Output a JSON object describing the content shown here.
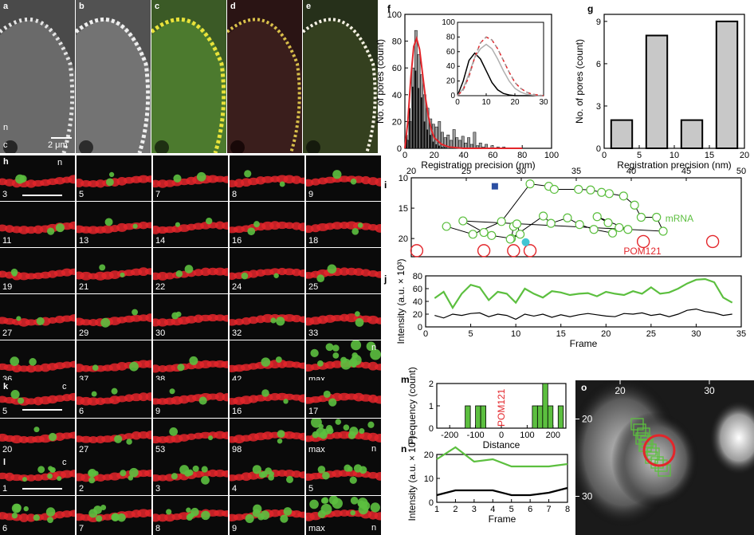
{
  "colors": {
    "red": "#e3262b",
    "green": "#5cbf3f",
    "blue": "#2b4fa2",
    "cyan": "#41c5d3",
    "gray": "#9b9b9b",
    "bar": "#c8c8c8"
  },
  "top_panels": {
    "labels": [
      "a",
      "b",
      "c",
      "d",
      "e"
    ],
    "n_label": "n",
    "c_label": "c",
    "scale_label": "2 μm"
  },
  "h": {
    "label": "h",
    "rows": [
      [
        "3",
        "5",
        "7",
        "8",
        "9"
      ],
      [
        "11",
        "13",
        "14",
        "16",
        "18"
      ],
      [
        "19",
        "21",
        "22",
        "24",
        "25"
      ],
      [
        "27",
        "29",
        "30",
        "32",
        "33"
      ],
      [
        "36",
        "37",
        "38",
        "42",
        "max"
      ]
    ],
    "n_label_top": "n",
    "n_label_max": "n"
  },
  "k": {
    "label": "k",
    "rows": [
      [
        "5",
        "6",
        "9",
        "16",
        "17"
      ],
      [
        "20",
        "27",
        "53",
        "98",
        "max"
      ]
    ],
    "c_label": "c",
    "n_label": "n"
  },
  "l": {
    "label": "l",
    "rows": [
      [
        "1",
        "2",
        "3",
        "4",
        "5"
      ],
      [
        "6",
        "7",
        "8",
        "9",
        "max"
      ]
    ],
    "c_label": "c",
    "n_label": "n"
  },
  "chart_data": [
    {
      "id": "f",
      "type": "bar",
      "xlabel": "Registration precision (nm)",
      "ylabel": "No. of pores (count)",
      "xlim": [
        0,
        100
      ],
      "ylim": [
        0,
        100
      ],
      "xticks": [
        0,
        20,
        40,
        60,
        80,
        100
      ],
      "yticks": [
        0,
        20,
        40,
        60,
        80,
        100
      ],
      "x": [
        1.5,
        3.5,
        5.5,
        7.5,
        9.5,
        11.5,
        13.5,
        15.5,
        17.5,
        19.5,
        21.5,
        23.5,
        25.5,
        27.5,
        29.5,
        31.5,
        33.5,
        35.5,
        37.5,
        39.5,
        41.5,
        43.5,
        45.5,
        47.5,
        49.5,
        51.5,
        53.5,
        55.5,
        57.5,
        59.5,
        61.5,
        63.5,
        65.5,
        67.5,
        69.5
      ],
      "series": [
        {
          "values": [
            10,
            30,
            46,
            58,
            45,
            38,
            20,
            14,
            10,
            5,
            3,
            2,
            1,
            1,
            0,
            0,
            0,
            0,
            0,
            0,
            0,
            0,
            0,
            0,
            0,
            0,
            0,
            0,
            0,
            0,
            0,
            0,
            0,
            0,
            0
          ]
        },
        {
          "values": [
            6,
            20,
            60,
            88,
            70,
            55,
            40,
            30,
            22,
            18,
            16,
            20,
            12,
            8,
            10,
            6,
            14,
            8,
            6,
            9,
            4,
            8,
            3,
            12,
            2,
            4,
            1,
            3,
            0,
            2,
            0,
            1,
            0,
            1,
            0
          ]
        }
      ],
      "curve": {
        "x": [
          0,
          2,
          4,
          6,
          8,
          10,
          12,
          14,
          16,
          18,
          20,
          25,
          30,
          40,
          60,
          80
        ],
        "y": [
          0,
          20,
          52,
          76,
          82,
          74,
          56,
          38,
          24,
          14,
          8,
          3,
          1,
          0,
          0,
          0
        ]
      },
      "inset": {
        "xlim": [
          0,
          30
        ],
        "ylim": [
          0,
          100
        ],
        "xticks": [
          0,
          10,
          20,
          30
        ],
        "yticks": [
          0,
          20,
          40,
          60,
          80,
          100
        ],
        "x": [
          0,
          2,
          4,
          6,
          8,
          10,
          12,
          14,
          16,
          18,
          20,
          22,
          24,
          26,
          28,
          30
        ],
        "series": [
          {
            "values": [
              0,
              20,
              48,
              58,
              50,
              34,
              18,
              8,
              3,
              1,
              0,
              0,
              0,
              0,
              0,
              0
            ]
          },
          {
            "values": [
              0,
              10,
              30,
              52,
              64,
              70,
              64,
              50,
              34,
              20,
              10,
              5,
              2,
              1,
              0,
              0
            ]
          },
          {
            "values": [
              0,
              8,
              26,
              52,
              72,
              80,
              76,
              64,
              48,
              32,
              18,
              10,
              5,
              2,
              1,
              0
            ]
          }
        ]
      }
    },
    {
      "id": "g",
      "type": "bar",
      "xlabel": "Registration precision (nm)",
      "ylabel": "No. of pores (count)",
      "xlim": [
        0,
        20
      ],
      "ylim": [
        0,
        9.5
      ],
      "xticks": [
        0,
        5,
        10,
        15,
        20
      ],
      "yticks": [
        0,
        3,
        6,
        9
      ],
      "bins": [
        [
          1,
          4
        ],
        [
          6,
          9
        ],
        [
          11,
          14
        ],
        [
          16,
          19
        ]
      ],
      "values": [
        2,
        8,
        2,
        9
      ]
    },
    {
      "id": "i",
      "type": "scatter",
      "xlim": [
        20,
        50
      ],
      "ylim": [
        10,
        23
      ],
      "xticks": [
        20,
        25,
        30,
        35,
        40,
        45,
        50
      ],
      "yticks": [
        10,
        15,
        20
      ],
      "mrna": {
        "name": "mRNA",
        "x": [
          23.2,
          25.6,
          28.2,
          30.8,
          32.5,
          33.0,
          35.2,
          36.3,
          37.3,
          38.0,
          39.3,
          40.3,
          40.9,
          42.3,
          42.9,
          24.7,
          26.6,
          27.3,
          29.1,
          29.3,
          29.6,
          29.9,
          29.0,
          32.0,
          32.7,
          34.2,
          35.3,
          36.6,
          38.3,
          38.9,
          39.7,
          36.9,
          37.9
        ],
        "y": [
          18.0,
          19.3,
          17.2,
          11.0,
          11.4,
          11.9,
          11.9,
          12.0,
          12.4,
          12.6,
          13.0,
          14.5,
          16.5,
          16.5,
          18.8,
          17.1,
          19.0,
          19.5,
          20.0,
          18.0,
          17.6,
          19.3,
          20.1,
          16.3,
          17.5,
          16.6,
          17.7,
          18.5,
          19.1,
          18.2,
          18.5,
          16.4,
          17.4
        ]
      },
      "pom121": {
        "name": "POM121",
        "x": [
          20.5,
          26.6,
          29.3,
          30.8,
          41.1,
          47.4
        ],
        "y": [
          22.0,
          22.0,
          22.0,
          22.0,
          20.5,
          20.5
        ]
      },
      "markers": [
        {
          "x": 27.6,
          "y": 11.4,
          "color": "#2b4fa2"
        },
        {
          "x": 30.4,
          "y": 20.6,
          "color": "#41c5d3"
        }
      ]
    },
    {
      "id": "j",
      "type": "line",
      "xlabel": "Frame",
      "ylabel": "Intensity (a.u. × 10³)",
      "xlim": [
        0,
        35
      ],
      "ylim": [
        0,
        80
      ],
      "xticks": [
        0,
        5,
        10,
        15,
        20,
        25,
        30,
        35
      ],
      "yticks": [
        0,
        20,
        40,
        60,
        80
      ],
      "x": [
        1,
        2,
        3,
        4,
        5,
        6,
        7,
        8,
        9,
        10,
        11,
        12,
        13,
        14,
        15,
        16,
        17,
        18,
        19,
        20,
        21,
        22,
        23,
        24,
        25,
        26,
        27,
        28,
        29,
        30,
        31,
        32,
        33,
        34
      ],
      "series": [
        {
          "color": "green",
          "values": [
            45,
            55,
            30,
            52,
            66,
            62,
            42,
            55,
            52,
            38,
            60,
            52,
            46,
            56,
            54,
            50,
            52,
            53,
            48,
            55,
            52,
            50,
            56,
            52,
            62,
            52,
            54,
            60,
            68,
            74,
            75,
            70,
            46,
            38
          ]
        },
        {
          "color": "black",
          "values": [
            18,
            14,
            20,
            18,
            21,
            22,
            16,
            20,
            18,
            12,
            20,
            17,
            20,
            15,
            19,
            16,
            19,
            21,
            19,
            17,
            16,
            21,
            20,
            22,
            18,
            20,
            16,
            20,
            26,
            28,
            24,
            22,
            18,
            20
          ]
        }
      ]
    },
    {
      "id": "m",
      "type": "bar",
      "xlabel": "Distance",
      "ylabel": "Frequency (count)",
      "annotation": "POM121",
      "xlim": [
        -250,
        250
      ],
      "ylim": [
        0,
        2
      ],
      "xticks": [
        -200,
        -100,
        0,
        100,
        200
      ],
      "yticks": [
        0,
        1,
        2
      ],
      "bins": [
        [
          -140,
          -120
        ],
        [
          -100,
          -80
        ],
        [
          -80,
          -60
        ],
        [
          120,
          140
        ],
        [
          140,
          160
        ],
        [
          160,
          180
        ],
        [
          180,
          200
        ],
        [
          220,
          240
        ]
      ],
      "values": [
        1,
        1,
        1,
        1,
        1,
        2,
        1,
        1
      ]
    },
    {
      "id": "n",
      "type": "line",
      "xlabel": "Frame",
      "ylabel": "Intensity (a.u. × 10³)",
      "xlim": [
        1,
        8
      ],
      "ylim": [
        0,
        20
      ],
      "xticks": [
        1,
        2,
        3,
        4,
        5,
        6,
        7,
        8
      ],
      "yticks": [
        0,
        10,
        20
      ],
      "x": [
        1,
        2,
        3,
        4,
        5,
        6,
        7,
        8
      ],
      "series": [
        {
          "color": "green",
          "values": [
            18,
            23,
            17,
            18,
            15,
            15,
            15,
            16
          ]
        },
        {
          "color": "black",
          "values": [
            3,
            5,
            5,
            5,
            3,
            3,
            4,
            6
          ]
        }
      ]
    },
    {
      "id": "o",
      "type": "scatter",
      "xticks": [
        20,
        30
      ],
      "yticks": [
        20,
        30
      ],
      "xlim": [
        15,
        35
      ],
      "ylim": [
        15,
        35
      ]
    }
  ],
  "labels": {
    "f": "f",
    "g": "g",
    "i": "i",
    "j": "j",
    "m": "m",
    "n": "n",
    "o": "o"
  }
}
